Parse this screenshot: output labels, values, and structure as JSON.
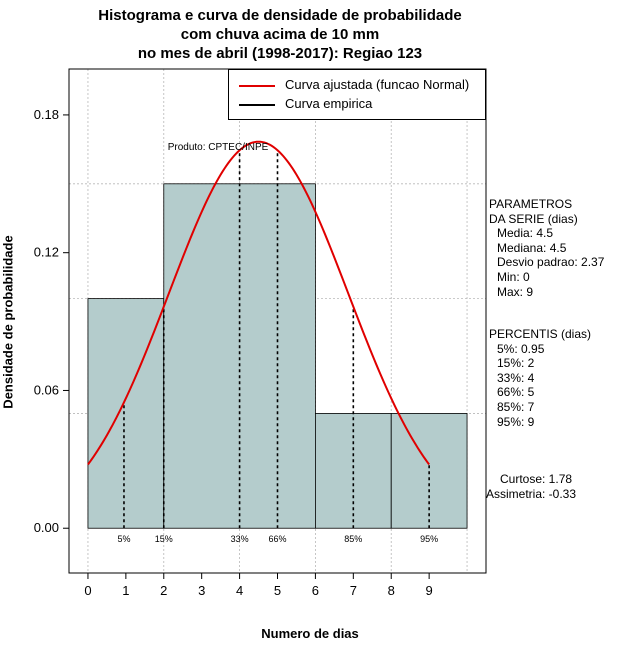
{
  "title_lines": [
    "Histograma e curva de densidade de probabilidade",
    "com chuva acima de 10 mm",
    "no mes de abril (1998-2017): Regiao 123"
  ],
  "credit": "Produto: CPTEC/INPE",
  "legend": {
    "fitted": "Curva ajustada (funcao Normal)",
    "empirical": "Curva empirica",
    "fitted_color": "#e00000",
    "empirical_color": "#000000"
  },
  "params": {
    "heading1": "PARAMETROS",
    "heading2": "DA SERIE (dias)",
    "media": "Media: 4.5",
    "mediana": "Mediana: 4.5",
    "desvio": "Desvio padrao: 2.37",
    "min": "Min: 0",
    "max": "Max: 9"
  },
  "percentis": {
    "heading": "PERCENTIS (dias)",
    "p5": "5%: 0.95",
    "p15": "15%: 2",
    "p33": "33%: 4",
    "p66": "66%: 5",
    "p85": "85%: 7",
    "p95": "95%: 9"
  },
  "stats": {
    "curtose": "Curtose: 1.78",
    "assimetria": "Assimetria: -0.33"
  },
  "chart_data": {
    "type": "histogram",
    "xlabel": "Numero de dias",
    "ylabel": "Densidade de probabilidade",
    "xlim": [
      -0.5,
      10.5
    ],
    "ylim": [
      -0.0195,
      0.2
    ],
    "x_ticks": [
      0,
      1,
      2,
      3,
      4,
      5,
      6,
      7,
      8,
      9
    ],
    "y_ticks": [
      0.0,
      0.06,
      0.12,
      0.18
    ],
    "y_tick_labels": [
      "0.00",
      "0.06",
      "0.12",
      "0.18"
    ],
    "bins": [
      {
        "start": 0,
        "end": 2,
        "density": 0.1
      },
      {
        "start": 2,
        "end": 6,
        "density": 0.15
      },
      {
        "start": 6,
        "end": 8,
        "density": 0.05
      },
      {
        "start": 8,
        "end": 10,
        "density": 0.05
      }
    ],
    "bar_color": "#b4cccc",
    "normal_fit": {
      "mean": 4.5,
      "sd": 2.37,
      "x_from": 0,
      "x_to": 9
    },
    "gridlines_x": [
      0,
      2,
      4,
      6,
      8,
      10
    ],
    "gridlines_y": [
      0.05,
      0.1,
      0.15,
      0.2
    ],
    "percentiles": [
      {
        "label": "5%",
        "x": 0.95
      },
      {
        "label": "15%",
        "x": 2
      },
      {
        "label": "33%",
        "x": 4
      },
      {
        "label": "66%",
        "x": 5
      },
      {
        "label": "85%",
        "x": 7
      },
      {
        "label": "95%",
        "x": 9
      }
    ]
  }
}
